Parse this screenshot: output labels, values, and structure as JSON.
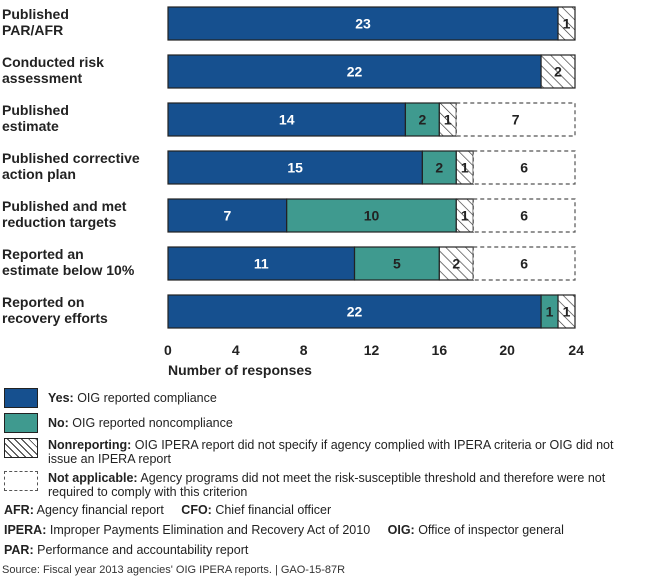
{
  "chart_data": {
    "type": "bar",
    "orientation": "horizontal",
    "stacked": true,
    "title": "",
    "xlabel": "Number of responses",
    "ylabel": "",
    "xlim": [
      0,
      24
    ],
    "xticks": [
      0,
      4,
      8,
      12,
      16,
      20,
      24
    ],
    "grid": false,
    "legend_position": "bottom",
    "categories": [
      [
        "Published",
        "PAR/AFR"
      ],
      [
        "Conducted risk",
        "assessment"
      ],
      [
        "Published",
        "estimate"
      ],
      [
        "Published corrective",
        "action plan"
      ],
      [
        "Published and met",
        "reduction targets"
      ],
      [
        "Reported an",
        "estimate below 10%"
      ],
      [
        "Reported on",
        "recovery efforts"
      ]
    ],
    "series": [
      {
        "key": "yes",
        "name": "Yes",
        "color": "#16508f",
        "label_color": "#ffffff",
        "values": [
          23,
          22,
          14,
          15,
          7,
          11,
          22
        ]
      },
      {
        "key": "no",
        "name": "No",
        "color": "#3f9a8f",
        "label_color": "#222222",
        "values": [
          0,
          0,
          2,
          2,
          10,
          5,
          1
        ]
      },
      {
        "key": "nonreporting",
        "name": "Nonreporting",
        "color": "hatch",
        "label_color": "#222222",
        "values": [
          1,
          2,
          1,
          1,
          1,
          2,
          1
        ]
      },
      {
        "key": "not_applicable",
        "name": "Not applicable",
        "color": "dashed",
        "label_color": "#222222",
        "values": [
          0,
          0,
          7,
          6,
          6,
          6,
          0
        ]
      }
    ]
  },
  "legend": [
    {
      "key": "yes",
      "bold": "Yes:",
      "text": " OIG reported compliance"
    },
    {
      "key": "no",
      "bold": "No:",
      "text": " OIG reported noncompliance"
    },
    {
      "key": "nonreporting",
      "bold": "Nonreporting:",
      "text": " OIG IPERA report did not specify if agency complied with IPERA criteria or OIG did not issue an IPERA report"
    },
    {
      "key": "not_applicable",
      "bold": "Not applicable:",
      "text": " Agency programs did not meet the risk-susceptible threshold and therefore were not required to comply with this criterion"
    }
  ],
  "abbreviations": [
    [
      {
        "abbr": "AFR:",
        "def": " Agency financial report"
      },
      {
        "abbr": "CFO:",
        "def": " Chief financial officer"
      }
    ],
    [
      {
        "abbr": "IPERA:",
        "def": " Improper Payments Elimination and Recovery Act of 2010"
      },
      {
        "abbr": "OIG:",
        "def": " Office of inspector general"
      }
    ],
    [
      {
        "abbr": "PAR:",
        "def": " Performance and accountability report"
      }
    ]
  ],
  "source": "Source: Fiscal year 2013 agencies' OIG IPERA reports.  |  GAO-15-87R"
}
